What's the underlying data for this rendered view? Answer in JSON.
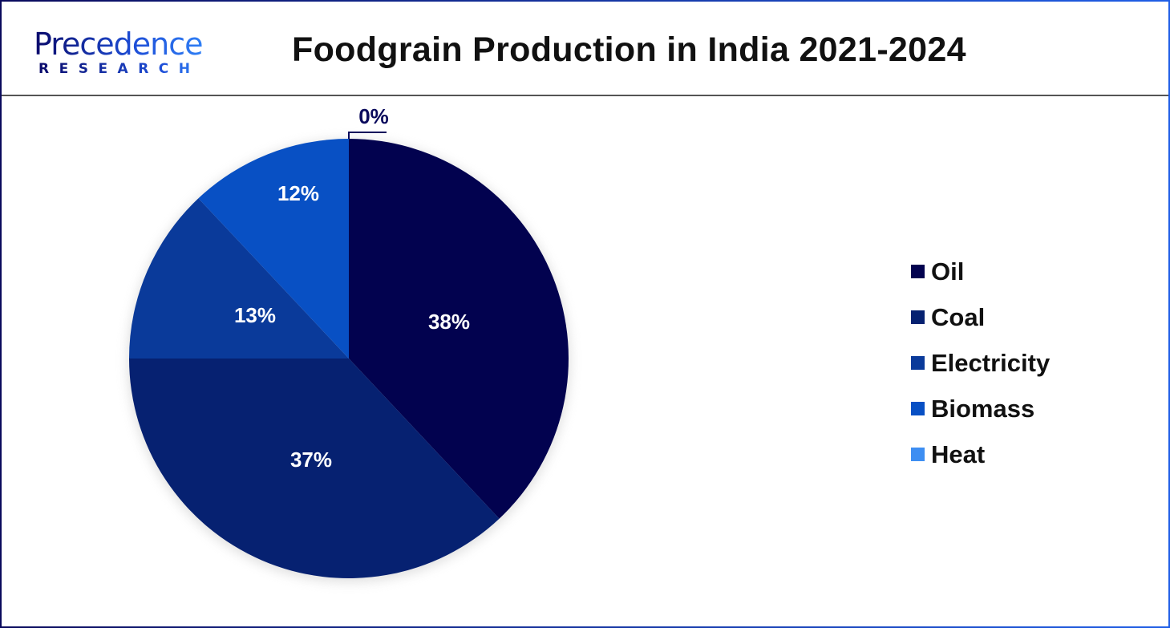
{
  "header": {
    "logo_top": "Precedence",
    "logo_bottom": "RESEARCH",
    "title": "Foodgrain Production in India 2021-2024"
  },
  "colors": {
    "Oil": "#02024f",
    "Coal": "#062171",
    "Electricity": "#0a3a9a",
    "Biomass": "#0850c4",
    "Heat": "#3d8ef2"
  },
  "legend": [
    {
      "label": "Oil",
      "color": "#02024f"
    },
    {
      "label": "Coal",
      "color": "#062171"
    },
    {
      "label": "Electricity",
      "color": "#0a3a9a"
    },
    {
      "label": "Biomass",
      "color": "#0850c4"
    },
    {
      "label": "Heat",
      "color": "#3d8ef2"
    }
  ],
  "chart_data": {
    "type": "pie",
    "title": "Foodgrain Production in India 2021-2024",
    "categories": [
      "Oil",
      "Coal",
      "Electricity",
      "Biomass",
      "Heat"
    ],
    "values": [
      38,
      37,
      13,
      12,
      0
    ],
    "data_labels": [
      "38%",
      "37%",
      "13%",
      "12%",
      "0%"
    ],
    "start_angle": "12 o'clock",
    "direction": "clockwise",
    "legend_position": "right"
  }
}
